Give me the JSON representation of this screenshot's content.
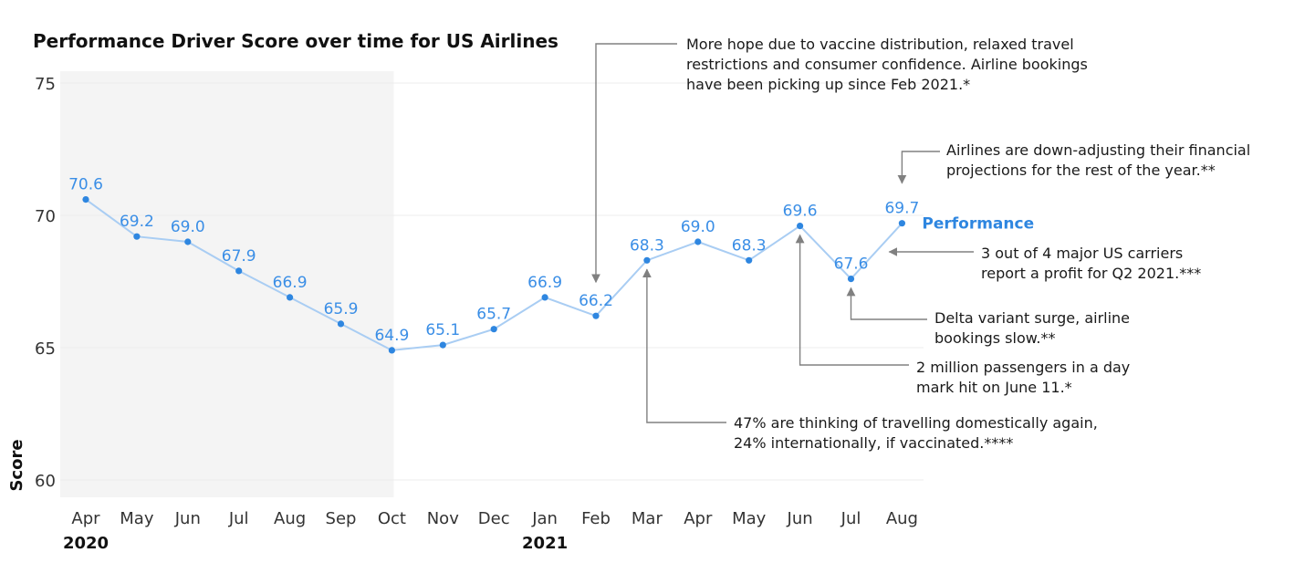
{
  "chart_data": {
    "type": "line",
    "title": "Performance Driver Score over time for US Airlines",
    "ylabel": "Score",
    "xlabel": "",
    "ylim": [
      59.5,
      75.5
    ],
    "yticks": [
      60,
      65,
      70,
      75
    ],
    "categories": [
      "Apr",
      "May",
      "Jun",
      "Jul",
      "Aug",
      "Sep",
      "Oct",
      "Nov",
      "Dec",
      "Jan",
      "Feb",
      "Mar",
      "Apr",
      "May",
      "Jun",
      "Jul",
      "Aug"
    ],
    "years": [
      {
        "label": "2020",
        "category_index": 0
      },
      {
        "label": "2021",
        "category_index": 9
      }
    ],
    "shaded_range": [
      0,
      6
    ],
    "grid": true,
    "series": [
      {
        "name": "Performance",
        "values": [
          70.6,
          69.2,
          69.0,
          67.9,
          66.9,
          65.9,
          64.9,
          65.1,
          65.7,
          66.9,
          66.2,
          68.3,
          69.0,
          68.3,
          69.6,
          67.6,
          69.7
        ],
        "labels": [
          "70.6",
          "69.2",
          "69.0",
          "67.9",
          "66.9",
          "65.9",
          "64.9",
          "65.1",
          "65.7",
          "66.9",
          "66.2",
          "68.3",
          "69.0",
          "68.3",
          "69.6",
          "67.6",
          "69.7"
        ]
      }
    ],
    "annotations": [
      {
        "id": "vaccine",
        "lines": [
          "More hope due to vaccine distribution, relaxed travel",
          "restrictions and consumer confidence. Airline bookings",
          "have been picking up since Feb 2021.*"
        ],
        "target_index": 10
      },
      {
        "id": "down-adjusting",
        "lines": [
          "Airlines are down-adjusting their financial",
          "projections for the rest of the year.**"
        ],
        "target_index": 16
      },
      {
        "id": "profit",
        "lines": [
          "3 out of 4 major US carriers",
          "report a profit for Q2 2021.***"
        ],
        "target_index": 16
      },
      {
        "id": "delta",
        "lines": [
          "Delta variant surge, airline",
          "bookings slow.**"
        ],
        "target_index": 15
      },
      {
        "id": "passengers",
        "lines": [
          "2 million passengers in a day",
          "mark hit on June 11.*"
        ],
        "target_index": 14
      },
      {
        "id": "travelling",
        "lines": [
          "47% are thinking of travelling domestically again,",
          "24% internationally, if vaccinated.****"
        ],
        "target_index": 11
      }
    ]
  },
  "colors": {
    "line": "#a9cdf3",
    "marker": "#2e86e0",
    "data_label": "#3a8ee6",
    "series_label": "#2e86e0",
    "shade": "#f4f4f4",
    "grid": "#ececec",
    "arrow": "#808080"
  }
}
